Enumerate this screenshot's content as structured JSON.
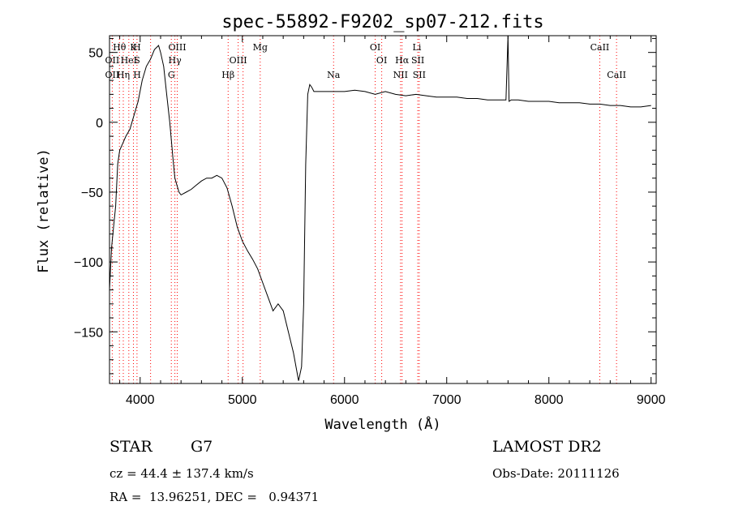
{
  "chart_data": {
    "type": "line",
    "title": "spec-55892-F9202_sp07-212.fits",
    "xlabel": "Wavelength (Å)",
    "ylabel": "Flux (relative)",
    "xlim": [
      3700,
      9050
    ],
    "ylim": [
      -187,
      62
    ],
    "xticks": [
      4000,
      5000,
      6000,
      7000,
      8000,
      9000
    ],
    "yticks": [
      50,
      0,
      -50,
      -100,
      -150
    ],
    "series": [
      {
        "x": [
          3700,
          3720,
          3740,
          3760,
          3780,
          3800,
          3830,
          3860,
          3900,
          3940,
          3980,
          4020,
          4060,
          4100,
          4140,
          4180,
          4200,
          4230,
          4260,
          4290,
          4320,
          4340,
          4360,
          4380,
          4400,
          4450,
          4500,
          4550,
          4600,
          4650,
          4700,
          4750,
          4800,
          4850,
          4900,
          4950,
          5000,
          5050,
          5100,
          5150,
          5200,
          5250,
          5300,
          5350,
          5400,
          5450,
          5500,
          5550,
          5580,
          5600,
          5620,
          5640,
          5660,
          5680,
          5700,
          5800,
          5900,
          6000,
          6100,
          6200,
          6300,
          6400,
          6500,
          6600,
          6700,
          6800,
          6900,
          7000,
          7100,
          7200,
          7300,
          7400,
          7500,
          7580,
          7600,
          7610,
          7630,
          7700,
          7800,
          7900,
          8000,
          8100,
          8200,
          8300,
          8400,
          8500,
          8600,
          8700,
          8800,
          8900,
          9000
        ],
        "y": [
          -120,
          -90,
          -75,
          -60,
          -30,
          -20,
          -15,
          -10,
          -5,
          5,
          15,
          30,
          40,
          45,
          52,
          55,
          50,
          40,
          20,
          0,
          -25,
          -40,
          -45,
          -50,
          -52,
          -50,
          -48,
          -45,
          -42,
          -40,
          -40,
          -38,
          -40,
          -47,
          -60,
          -75,
          -85,
          -92,
          -98,
          -105,
          -115,
          -125,
          -135,
          -130,
          -135,
          -150,
          -165,
          -185,
          -175,
          -130,
          -30,
          20,
          27,
          25,
          22,
          22,
          22,
          22,
          23,
          22,
          20,
          22,
          20,
          19,
          20,
          19,
          18,
          18,
          18,
          17,
          17,
          16,
          16,
          16,
          62,
          15,
          16,
          16,
          15,
          15,
          15,
          14,
          14,
          14,
          13,
          13,
          12,
          12,
          11,
          11,
          12
        ]
      }
    ],
    "lines_upper": [
      {
        "label": "Hθ",
        "x": 3797
      },
      {
        "label": "K",
        "x": 3934
      },
      {
        "label": "H",
        "x": 3969
      },
      {
        "label": "OIII",
        "x": 4363
      },
      {
        "label": "Mg",
        "x": 5175
      },
      {
        "label": "OI",
        "x": 6300
      },
      {
        "label": "Li",
        "x": 6708
      },
      {
        "label": "CaII",
        "x": 8498
      }
    ],
    "lines_middle": [
      {
        "label": "OII",
        "x": 3727
      },
      {
        "label": "HeI",
        "x": 3889
      },
      {
        "label": "S",
        "x": 3970
      },
      {
        "label": "Hγ",
        "x": 4340
      },
      {
        "label": "OIII",
        "x": 4959
      },
      {
        "label": "OI",
        "x": 6364
      },
      {
        "label": "Hα",
        "x": 6563
      },
      {
        "label": "SII",
        "x": 6717
      }
    ],
    "lines_lower": [
      {
        "label": "OII",
        "x": 3727
      },
      {
        "label": "Hη",
        "x": 3835
      },
      {
        "label": "H",
        "x": 3970
      },
      {
        "label": "G",
        "x": 4305
      },
      {
        "label": "Hβ",
        "x": 4861
      },
      {
        "label": "Na",
        "x": 5893
      },
      {
        "label": "NII",
        "x": 6548
      },
      {
        "label": "SII",
        "x": 6731
      },
      {
        "label": "CaII",
        "x": 8662
      }
    ],
    "dotted_lines_x": [
      3727,
      3797,
      3835,
      3889,
      3934,
      3969,
      4102,
      4305,
      4340,
      4363,
      4861,
      4959,
      5007,
      5175,
      5893,
      6300,
      6364,
      6548,
      6563,
      6717,
      6731,
      8498,
      8662
    ],
    "grid": false,
    "legend": "none"
  },
  "info": {
    "object_class": "STAR",
    "subclass": "G7",
    "survey": "LAMOST DR2",
    "cz": "cz = 44.4 ± 137.4 km/s",
    "obs_date": "Obs-Date: 20111126",
    "coords": "RA =  13.96251, DEC =   0.94371"
  },
  "colors": {
    "spectrum": "#000000",
    "line_markers": "#ff0000",
    "frame": "#000000",
    "background": "#ffffff"
  }
}
